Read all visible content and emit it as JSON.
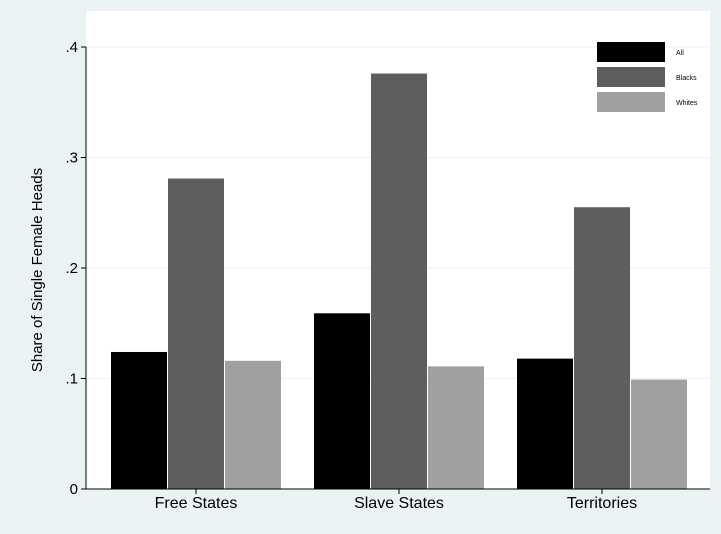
{
  "chart_data": {
    "type": "bar",
    "title": "",
    "xlabel": "",
    "ylabel": "Share of Single Female Heads",
    "ylim": [
      0,
      0.4
    ],
    "yticks": [
      {
        "value": 0,
        "label": "0"
      },
      {
        "value": 0.1,
        "label": ".1"
      },
      {
        "value": 0.2,
        "label": ".2"
      },
      {
        "value": 0.3,
        "label": ".3"
      },
      {
        "value": 0.4,
        "label": ".4"
      }
    ],
    "grid": true,
    "legend_position": "top-right",
    "categories": [
      "Free States",
      "Slave States",
      "Territories"
    ],
    "series": [
      {
        "name": "All",
        "color": "#000000",
        "values": [
          0.124,
          0.159,
          0.118
        ]
      },
      {
        "name": "Blacks",
        "color": "#5e5e5e",
        "values": [
          0.281,
          0.376,
          0.255
        ]
      },
      {
        "name": "Whites",
        "color": "#a0a0a0",
        "values": [
          0.116,
          0.111,
          0.099
        ]
      }
    ],
    "colors": {
      "background": "#eaf2f3",
      "plot_background": "#ffffff",
      "grid": "#eaf2f3"
    }
  }
}
